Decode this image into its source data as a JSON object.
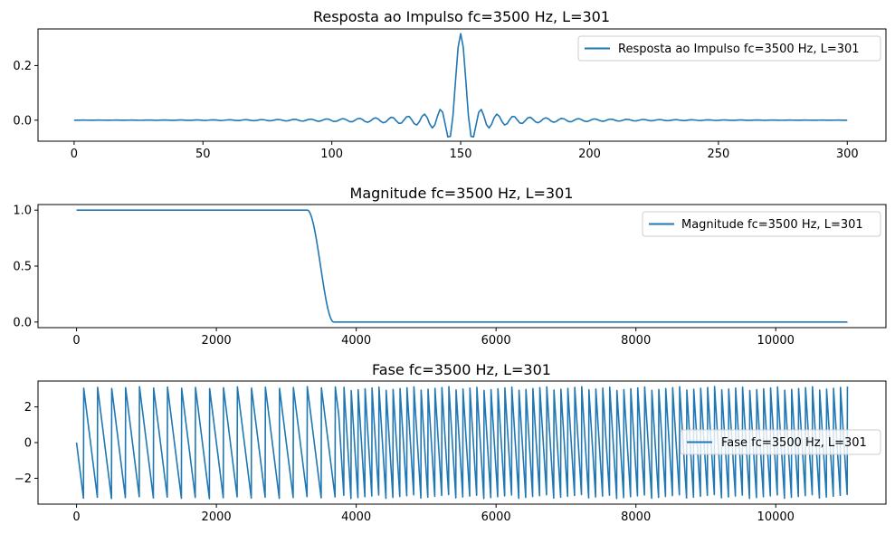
{
  "chart_data": [
    {
      "type": "line",
      "title": "Resposta ao Impulso fc=3500 Hz, L=301",
      "xlabel": "",
      "ylabel": "",
      "xlim": [
        -14,
        315
      ],
      "ylim": [
        -0.077,
        0.334
      ],
      "xticks": [
        0,
        50,
        100,
        150,
        200,
        250,
        300
      ],
      "yticks": [
        0.0,
        0.2
      ],
      "ytick_labels": [
        "0.0",
        "0.2"
      ],
      "grid": false,
      "legend": "upper right",
      "series": [
        {
          "name": "Resposta ao Impulso fc=3500 Hz, L=301",
          "color": "#1f77b4",
          "generator": "windowed-sinc",
          "n_points": 301,
          "center": 150,
          "peak": 0.317,
          "cutoff_fraction": 0.3175
        }
      ]
    },
    {
      "type": "line",
      "title": "Magnitude fc=3500 Hz, L=301",
      "xlabel": "",
      "ylabel": "",
      "xlim": [
        -551,
        11576
      ],
      "ylim": [
        -0.05,
        1.05
      ],
      "xticks": [
        0,
        2000,
        4000,
        6000,
        8000,
        10000
      ],
      "yticks": [
        0.0,
        0.5,
        1.0
      ],
      "ytick_labels": [
        "0.0",
        "0.5",
        "1.0"
      ],
      "grid": false,
      "legend": "upper right",
      "series": [
        {
          "name": "Magnitude fc=3500 Hz, L=301",
          "color": "#1f77b4",
          "generator": "lowpass-magnitude",
          "x_range": [
            0,
            11025
          ],
          "passband_value": 1.0,
          "transition_start": 3300,
          "transition_end": 3680
        }
      ]
    },
    {
      "type": "line",
      "title": "Fase fc=3500 Hz, L=301",
      "xlabel": "",
      "ylabel": "",
      "xlim": [
        -551,
        11576
      ],
      "ylim": [
        -3.45,
        3.45
      ],
      "xticks": [
        0,
        2000,
        4000,
        6000,
        8000,
        10000
      ],
      "yticks": [
        -2,
        0,
        2
      ],
      "ytick_labels": [
        "−2",
        "0",
        "2"
      ],
      "grid": false,
      "legend": "center right",
      "series": [
        {
          "name": "Fase fc=3500 Hz, L=301",
          "color": "#1f77b4",
          "generator": "wrapped-phase",
          "x_range": [
            0,
            11025
          ],
          "wrap_period_low_hz": 200,
          "wrap_period_high_hz": 100,
          "transition_hz": 3750
        }
      ]
    }
  ]
}
